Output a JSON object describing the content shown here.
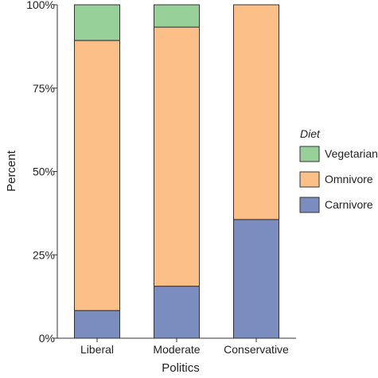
{
  "chart_data": {
    "type": "bar",
    "stacked": true,
    "normalized_percent": true,
    "categories": [
      "Liberal",
      "Moderate",
      "Conservative"
    ],
    "series": [
      {
        "name": "Carnivore",
        "values": [
          8.3,
          15.6,
          35.6
        ],
        "color": "#7b8dbf"
      },
      {
        "name": "Omnivore",
        "values": [
          81.0,
          77.7,
          64.4
        ],
        "color": "#fcbf88"
      },
      {
        "name": "Vegetarian",
        "values": [
          10.7,
          6.7,
          0.0
        ],
        "color": "#98d09a"
      }
    ],
    "title": "",
    "xlabel": "Politics",
    "ylabel": "Percent",
    "ylim": [
      0,
      100
    ],
    "yticks": [
      0,
      25,
      50,
      75,
      100
    ],
    "ytick_labels": [
      "0%",
      "25%",
      "50%",
      "75%",
      "100%"
    ],
    "grid": false,
    "legend": {
      "title": "Diet",
      "placement": "right",
      "order": [
        "Vegetarian",
        "Omnivore",
        "Carnivore"
      ]
    }
  }
}
